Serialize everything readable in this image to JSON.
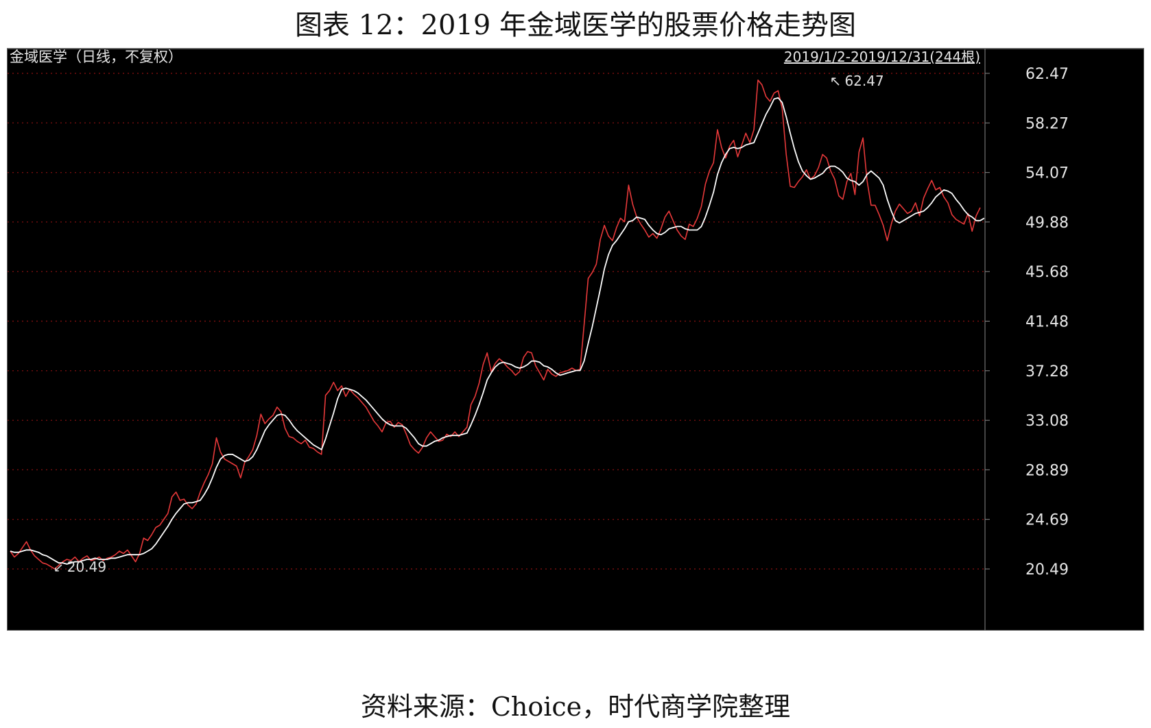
{
  "figure_title": "图表 12：2019 年金域医学的股票价格走势图",
  "source_note": "资料来源：Choice，时代商学院整理",
  "colors": {
    "background": "#000000",
    "price_line": "#e8393a",
    "ma_line": "#ffffff",
    "grid": "#7a0f0f",
    "axis_text": "#e6e6e6",
    "header_text": "#e6e6e6"
  },
  "chart_data": {
    "type": "line",
    "title": "金域医学（日线，不复权）",
    "range_label": "2019/1/2-2019/12/31(244根)",
    "ylim": [
      19.6,
      63.8
    ],
    "y_ticks": [
      "62.47",
      "58.27",
      "54.07",
      "49.88",
      "45.68",
      "41.48",
      "37.28",
      "33.08",
      "28.89",
      "24.69",
      "20.49"
    ],
    "grid": true,
    "annotations": {
      "max": {
        "label": "62.47",
        "index": 199,
        "value": 62.47
      },
      "min": {
        "label": "20.49",
        "index": 11,
        "value": 20.49
      }
    },
    "series": [
      {
        "values": [
          22.0,
          21.5,
          21.8,
          22.3,
          22.8,
          22.1,
          21.6,
          21.3,
          21.0,
          20.9,
          20.7,
          20.49,
          20.8,
          21.1,
          21.3,
          21.2,
          21.5,
          21.1,
          21.4,
          21.6,
          21.2,
          21.3,
          21.5,
          21.2,
          21.4,
          21.5,
          21.7,
          22.0,
          21.8,
          22.1,
          21.6,
          21.1,
          21.8,
          23.1,
          22.9,
          23.4,
          24.0,
          24.2,
          24.7,
          25.2,
          26.6,
          27.0,
          26.3,
          26.4,
          25.9,
          25.6,
          26.0,
          27.0,
          27.8,
          28.5,
          29.4,
          31.6,
          30.4,
          29.8,
          29.6,
          29.4,
          29.2,
          28.2,
          29.5,
          30.0,
          30.6,
          31.8,
          33.6,
          32.8,
          33.2,
          33.5,
          34.2,
          33.8,
          32.4,
          31.7,
          31.6,
          31.3,
          31.1,
          31.4,
          30.8,
          30.7,
          30.4,
          30.2,
          35.2,
          35.6,
          36.3,
          35.6,
          36.0,
          35.1,
          35.7,
          35.3,
          35.0,
          34.6,
          34.2,
          33.6,
          33.0,
          32.6,
          32.1,
          32.9,
          33.0,
          32.5,
          32.9,
          32.7,
          31.9,
          31.0,
          30.6,
          30.3,
          30.8,
          31.6,
          32.1,
          31.7,
          31.3,
          31.4,
          31.9,
          31.7,
          32.1,
          31.7,
          32.1,
          32.5,
          34.4,
          35.1,
          36.2,
          37.8,
          38.8,
          37.2,
          37.9,
          38.3,
          38.0,
          37.6,
          37.3,
          36.9,
          37.2,
          38.4,
          38.9,
          38.8,
          37.7,
          37.1,
          36.5,
          37.4,
          37.0,
          36.8,
          37.1,
          37.2,
          37.3,
          37.5,
          37.3,
          37.4,
          41.2,
          45.1,
          45.6,
          46.3,
          48.4,
          49.6,
          48.7,
          48.3,
          49.4,
          50.2,
          49.9,
          53.0,
          51.4,
          50.3,
          49.7,
          49.2,
          48.6,
          48.9,
          48.5,
          49.3,
          50.3,
          50.8,
          50.0,
          49.2,
          48.7,
          48.4,
          49.7,
          49.5,
          50.2,
          51.2,
          53.1,
          54.2,
          54.9,
          57.7,
          56.2,
          55.3,
          56.3,
          56.8,
          55.4,
          56.4,
          57.4,
          56.6,
          57.7,
          61.9,
          61.5,
          60.5,
          60.1,
          60.8,
          61.0,
          59.5,
          55.6,
          52.9,
          52.8,
          53.3,
          53.7,
          54.3,
          53.5,
          53.8,
          54.5,
          55.6,
          55.3,
          54.2,
          53.5,
          52.1,
          51.8,
          53.3,
          54.0,
          52.2,
          55.8,
          57.0,
          53.4,
          51.3,
          51.3,
          50.5,
          49.6,
          48.3,
          49.7,
          50.8,
          51.4,
          51.0,
          50.6,
          50.8,
          51.5,
          50.4,
          51.9,
          52.7,
          53.4,
          52.6,
          52.8,
          52.0,
          51.5,
          50.5,
          50.1,
          49.9,
          49.7,
          50.6,
          49.1,
          50.4,
          51.1
        ]
      },
      {
        "values": [
          22.0,
          21.9,
          21.9,
          22.0,
          22.1,
          22.1,
          22.0,
          21.9,
          21.7,
          21.6,
          21.4,
          21.2,
          21.0,
          21.0,
          20.9,
          21.0,
          21.1,
          21.1,
          21.2,
          21.3,
          21.3,
          21.4,
          21.3,
          21.3,
          21.3,
          21.4,
          21.4,
          21.5,
          21.6,
          21.7,
          21.7,
          21.7,
          21.7,
          21.8,
          22.0,
          22.2,
          22.6,
          23.1,
          23.6,
          24.1,
          24.7,
          25.2,
          25.6,
          26.0,
          26.1,
          26.1,
          26.2,
          26.3,
          26.8,
          27.4,
          28.2,
          29.1,
          29.8,
          30.1,
          30.2,
          30.2,
          30.0,
          29.8,
          29.6,
          29.7,
          30.0,
          30.6,
          31.4,
          32.2,
          32.7,
          33.1,
          33.5,
          33.6,
          33.5,
          33.1,
          32.6,
          32.2,
          31.9,
          31.6,
          31.3,
          31.0,
          30.8,
          30.6,
          31.5,
          32.6,
          33.7,
          34.9,
          35.7,
          35.8,
          35.7,
          35.6,
          35.4,
          35.1,
          34.8,
          34.4,
          34.0,
          33.6,
          33.2,
          32.9,
          32.7,
          32.6,
          32.6,
          32.6,
          32.4,
          32.0,
          31.6,
          31.1,
          30.9,
          30.9,
          31.1,
          31.3,
          31.4,
          31.6,
          31.7,
          31.8,
          31.8,
          31.8,
          31.9,
          32.0,
          32.7,
          33.5,
          34.4,
          35.4,
          36.5,
          37.1,
          37.6,
          37.9,
          38.0,
          37.9,
          37.8,
          37.6,
          37.5,
          37.6,
          37.8,
          38.1,
          38.1,
          38.0,
          37.7,
          37.6,
          37.4,
          37.1,
          36.9,
          37.0,
          37.1,
          37.2,
          37.3,
          37.3,
          38.1,
          39.6,
          41.0,
          42.6,
          44.2,
          45.9,
          47.1,
          47.9,
          48.3,
          48.8,
          49.3,
          49.9,
          50.0,
          50.3,
          50.2,
          50.1,
          49.6,
          49.2,
          48.9,
          48.8,
          49.0,
          49.3,
          49.4,
          49.5,
          49.5,
          49.3,
          49.2,
          49.2,
          49.2,
          49.5,
          50.3,
          51.3,
          52.4,
          53.9,
          54.9,
          55.6,
          56.1,
          56.2,
          56.1,
          56.2,
          56.4,
          56.5,
          56.6,
          57.4,
          58.2,
          59.0,
          59.6,
          60.3,
          60.4,
          60.0,
          58.8,
          57.4,
          56.1,
          55.0,
          54.2,
          53.8,
          53.5,
          53.6,
          53.8,
          54.0,
          54.4,
          54.6,
          54.6,
          54.4,
          54.1,
          53.6,
          53.4,
          53.3,
          53.0,
          53.3,
          53.9,
          54.2,
          53.9,
          53.6,
          53.0,
          51.8,
          50.8,
          50.0,
          49.8,
          50.0,
          50.2,
          50.4,
          50.6,
          50.7,
          50.8,
          51.1,
          51.5,
          52.0,
          52.3,
          52.6,
          52.5,
          52.3,
          51.8,
          51.4,
          50.9,
          50.5,
          50.3,
          50.0,
          50.0,
          50.2
        ]
      }
    ]
  }
}
